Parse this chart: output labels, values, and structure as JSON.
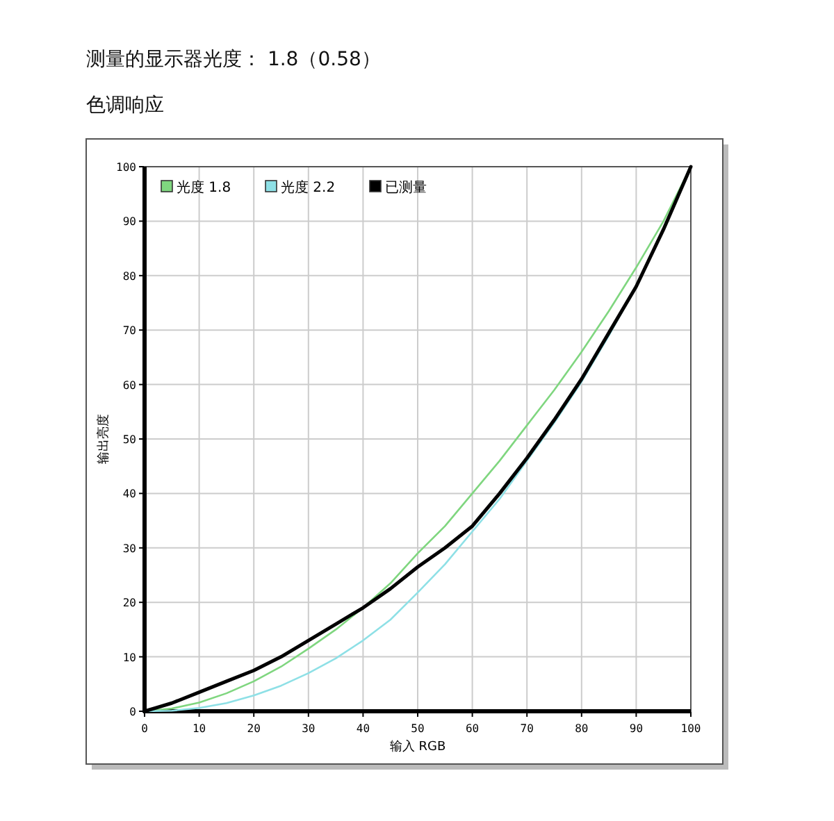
{
  "chart_data": {
    "type": "line",
    "title": "测量的显示器光度： 1.8（0.58）",
    "subtitle": "色调响应",
    "xlabel": "输入 RGB",
    "ylabel": "输出亮度",
    "x": [
      0,
      5,
      10,
      15,
      20,
      25,
      30,
      35,
      40,
      45,
      50,
      55,
      60,
      65,
      70,
      75,
      80,
      85,
      90,
      95,
      100
    ],
    "series": [
      {
        "name": "光度 1.8",
        "color": "#7fd67f",
        "values": [
          0,
          0.5,
          1.6,
          3.3,
          5.5,
          8.2,
          11.5,
          15,
          19,
          23.5,
          29,
          34,
          40,
          46,
          52.5,
          59,
          66,
          73.5,
          81.5,
          90,
          100
        ]
      },
      {
        "name": "光度 2.2",
        "color": "#8ee0e6",
        "values": [
          0,
          0.1,
          0.6,
          1.5,
          2.9,
          4.7,
          7,
          9.7,
          13,
          16.8,
          21.8,
          27,
          33,
          39,
          46,
          53,
          60.5,
          69,
          78,
          null,
          null
        ]
      },
      {
        "name": "已测量",
        "color": "#000000",
        "values": [
          0,
          1.5,
          3.5,
          5.5,
          7.5,
          10,
          13,
          16,
          19,
          22.5,
          26.5,
          30,
          34,
          40,
          46.5,
          53.5,
          61,
          69.5,
          78,
          88.5,
          100
        ]
      }
    ],
    "xlim": [
      0,
      100
    ],
    "ylim": [
      0,
      100
    ],
    "xticks": [
      0,
      10,
      20,
      30,
      40,
      50,
      60,
      70,
      80,
      90,
      100
    ],
    "yticks": [
      0,
      10,
      20,
      30,
      40,
      50,
      60,
      70,
      80,
      90,
      100
    ],
    "grid": true,
    "legend": "top left",
    "line_style": "solid"
  }
}
